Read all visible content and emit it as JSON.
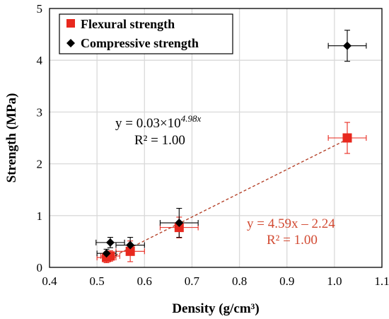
{
  "chart_data": {
    "type": "scatter",
    "xlabel": "Density  (g/cm³)",
    "ylabel": "Strength (MPa)",
    "xlim": [
      0.4,
      1.1
    ],
    "ylim": [
      0,
      5
    ],
    "x_ticks": [
      "0.4",
      "0.5",
      "0.6",
      "0.7",
      "0.8",
      "0.9",
      "1.0",
      "1.1"
    ],
    "y_ticks": [
      "0",
      "1",
      "2",
      "3",
      "4",
      "5"
    ],
    "grid": true,
    "legend_position": "top-left",
    "series": [
      {
        "name": "Flexural strength",
        "marker": "square",
        "color": "#e8281e",
        "points": [
          {
            "x": 0.52,
            "y": 0.19,
            "xerr": 0.02,
            "yerr": 0.1
          },
          {
            "x": 0.528,
            "y": 0.22,
            "xerr": 0.02,
            "yerr": 0.1
          },
          {
            "x": 0.57,
            "y": 0.31,
            "xerr": 0.03,
            "yerr": 0.2
          },
          {
            "x": 0.673,
            "y": 0.77,
            "xerr": 0.04,
            "yerr": 0.2
          },
          {
            "x": 1.027,
            "y": 2.5,
            "xerr": 0.04,
            "yerr": 0.3
          }
        ]
      },
      {
        "name": "Compressive strength",
        "marker": "diamond",
        "color": "#000000",
        "points": [
          {
            "x": 0.52,
            "y": 0.27,
            "xerr": 0.02,
            "yerr": 0.08
          },
          {
            "x": 0.528,
            "y": 0.48,
            "xerr": 0.03,
            "yerr": 0.1
          },
          {
            "x": 0.57,
            "y": 0.43,
            "xerr": 0.03,
            "yerr": 0.15
          },
          {
            "x": 0.673,
            "y": 0.86,
            "xerr": 0.04,
            "yerr": 0.28
          },
          {
            "x": 1.027,
            "y": 4.28,
            "xerr": 0.04,
            "yerr": 0.3
          }
        ]
      }
    ],
    "fits": [
      {
        "series": "Compressive strength",
        "kind": "exponential",
        "a": 0.03,
        "b": 4.98,
        "style": "solid",
        "color": "#000000"
      },
      {
        "series": "Flexural strength",
        "kind": "linear",
        "slope": 4.59,
        "intercept": -2.24,
        "style": "dashed",
        "color": "#b5432b"
      }
    ],
    "annotations": {
      "compressive_equation_main": "y = 0.03×10",
      "compressive_equation_exponent": "4.98x",
      "compressive_r2": "R² = 1.00",
      "flexural_equation": "y = 4.59x – 2.24",
      "flexural_r2": "R² = 1.00"
    },
    "annotation_colors": {
      "compressive": "#000000",
      "flexural": "#d24a32"
    }
  }
}
